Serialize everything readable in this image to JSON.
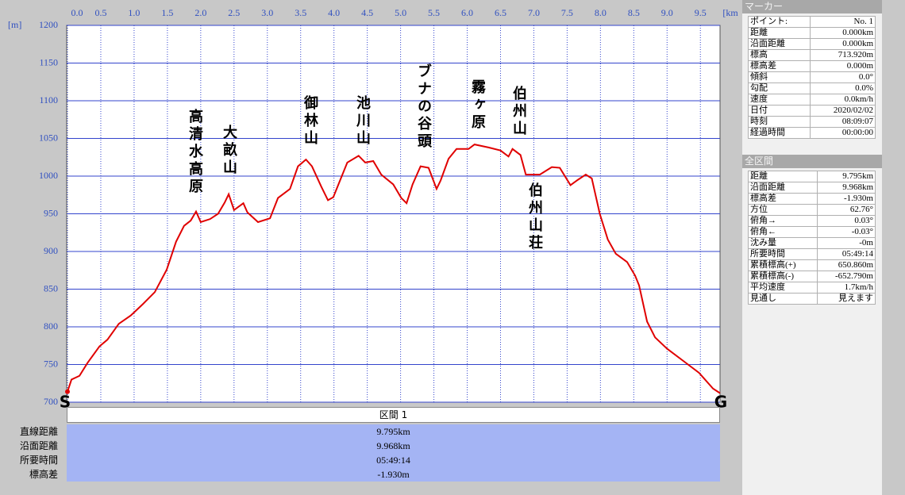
{
  "chart_data": {
    "type": "line",
    "x_label": "[km]",
    "y_label": "[m]",
    "xlim": [
      0,
      9.795
    ],
    "ylim": [
      700,
      1200
    ],
    "xticks": [
      {
        "value": 0,
        "label": "0.0"
      },
      0.5,
      {
        "value": 1,
        "label": "1.0"
      },
      1.5,
      {
        "value": 2,
        "label": "2.0"
      },
      2.5,
      {
        "value": 3,
        "label": "3.0"
      },
      3.5,
      {
        "value": 4,
        "label": "4.0"
      },
      4.5,
      {
        "value": 5,
        "label": "5.0"
      },
      5.5,
      {
        "value": 6,
        "label": "6.0"
      },
      6.5,
      {
        "value": 7,
        "label": "7.0"
      },
      7.5,
      {
        "value": 8,
        "label": "8.0"
      },
      8.5,
      {
        "value": 9,
        "label": "9.0"
      },
      9.5
    ],
    "yticks": [
      700,
      750,
      800,
      850,
      900,
      950,
      1000,
      1050,
      1100,
      1150,
      1200
    ],
    "grid": true,
    "color": "#e00000",
    "x": [
      0,
      0.06,
      0.18,
      0.3,
      0.48,
      0.6,
      0.77,
      0.95,
      1.13,
      1.31,
      1.49,
      1.63,
      1.75,
      1.85,
      1.93,
      2.0,
      2.14,
      2.26,
      2.36,
      2.42,
      2.5,
      2.64,
      2.7,
      2.86,
      3.04,
      3.16,
      3.34,
      3.46,
      3.58,
      3.67,
      3.81,
      3.91,
      3.99,
      4.09,
      4.2,
      4.37,
      4.47,
      4.59,
      4.71,
      4.89,
      5.01,
      5.09,
      5.18,
      5.3,
      5.42,
      5.54,
      5.6,
      5.72,
      5.84,
      6.02,
      6.11,
      6.32,
      6.5,
      6.62,
      6.68,
      6.8,
      6.88,
      7.09,
      7.27,
      7.39,
      7.55,
      7.66,
      7.78,
      7.87,
      7.99,
      8.11,
      8.23,
      8.4,
      8.52,
      8.58,
      8.7,
      8.82,
      9.0,
      9.24,
      9.48,
      9.69,
      9.795
    ],
    "values": [
      714,
      730,
      735,
      752,
      774,
      783,
      804,
      815,
      830,
      846,
      876,
      913,
      934,
      941,
      953,
      939,
      943,
      950,
      965,
      976,
      955,
      964,
      952,
      939,
      944,
      971,
      983,
      1013,
      1022,
      1013,
      986,
      968,
      972,
      994,
      1018,
      1027,
      1018,
      1020,
      1002,
      989,
      971,
      964,
      989,
      1013,
      1011,
      983,
      994,
      1023,
      1036,
      1036,
      1042,
      1038,
      1034,
      1026,
      1036,
      1028,
      1002,
      1002,
      1012,
      1011,
      988,
      995,
      1002,
      997,
      950,
      916,
      897,
      886,
      868,
      855,
      807,
      786,
      771,
      755,
      739,
      718,
      712
    ],
    "start_label": "S",
    "end_label": "G",
    "annotations": [
      "高清水高原",
      "大畝山",
      "御林山",
      "池川山",
      "ブナの谷頭",
      "霧ヶ原",
      "伯州山",
      "伯州山荘"
    ]
  },
  "marker_panel": {
    "title": "マーカー",
    "rows": [
      [
        "ポイント:",
        "No. 1"
      ],
      [
        "距離",
        "0.000km"
      ],
      [
        "沿面距離",
        "0.000km"
      ],
      [
        "標高",
        "713.920m"
      ],
      [
        "標高差",
        "0.000m"
      ],
      [
        "傾斜",
        "0.0°"
      ],
      [
        "勾配",
        "0.0%"
      ],
      [
        "速度",
        "0.0km/h"
      ],
      [
        "日付",
        "2020/02/02"
      ],
      [
        "時刻",
        "08:09:07"
      ],
      [
        "経過時間",
        "00:00:00"
      ]
    ]
  },
  "total_panel": {
    "title": "全区間",
    "rows": [
      [
        "距離",
        "9.795km"
      ],
      [
        "沿面距離",
        "9.968km"
      ],
      [
        "標高差",
        "-1.930m"
      ],
      [
        "方位",
        "62.76°"
      ],
      [
        "俯角→",
        "0.03°"
      ],
      [
        "俯角←",
        "-0.03°"
      ],
      [
        "沈み量",
        "-0m"
      ],
      [
        "所要時間",
        "05:49:14"
      ],
      [
        "累積標高(+)",
        "650.860m"
      ],
      [
        "累積標高(-)",
        "-652.790m"
      ],
      [
        "平均速度",
        "1.7km/h"
      ],
      [
        "見通し",
        "見えます"
      ]
    ]
  },
  "section_table": {
    "title": "区間 1",
    "rows": [
      [
        "直線距離",
        "9.795km"
      ],
      [
        "沿面距離",
        "9.968km"
      ],
      [
        "所要時間",
        "05:49:14"
      ],
      [
        "標高差",
        "-1.930m"
      ]
    ]
  }
}
